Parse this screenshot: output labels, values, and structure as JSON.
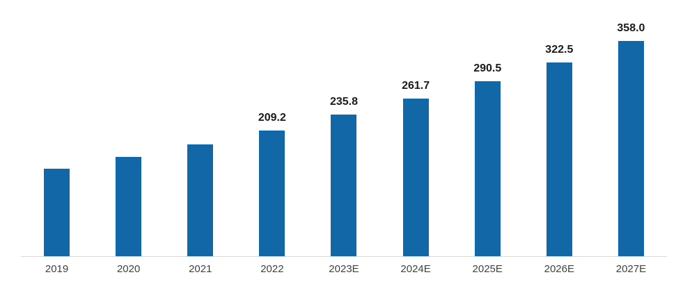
{
  "chart_data": {
    "type": "bar",
    "title": "",
    "xlabel": "",
    "ylabel": "",
    "categories": [
      "2019",
      "2020",
      "2021",
      "2022",
      "2023E",
      "2024E",
      "2025E",
      "2026E",
      "2027E"
    ],
    "values": [
      146,
      165,
      186,
      209.2,
      235.8,
      261.7,
      290.5,
      322.5,
      358.0
    ],
    "data_labels": [
      "",
      "",
      "",
      "209.2",
      "235.8",
      "261.7",
      "290.5",
      "322.5",
      "358.0"
    ],
    "ylim": [
      0,
      400
    ],
    "grid": false,
    "legend": false,
    "axis_line": "bottom-only",
    "colors": {
      "bar": "#1268a7",
      "axis_line": "#d9d9d9",
      "tick_label": "#404040",
      "value_label": "#1a1a1a",
      "background": "#ffffff"
    }
  }
}
